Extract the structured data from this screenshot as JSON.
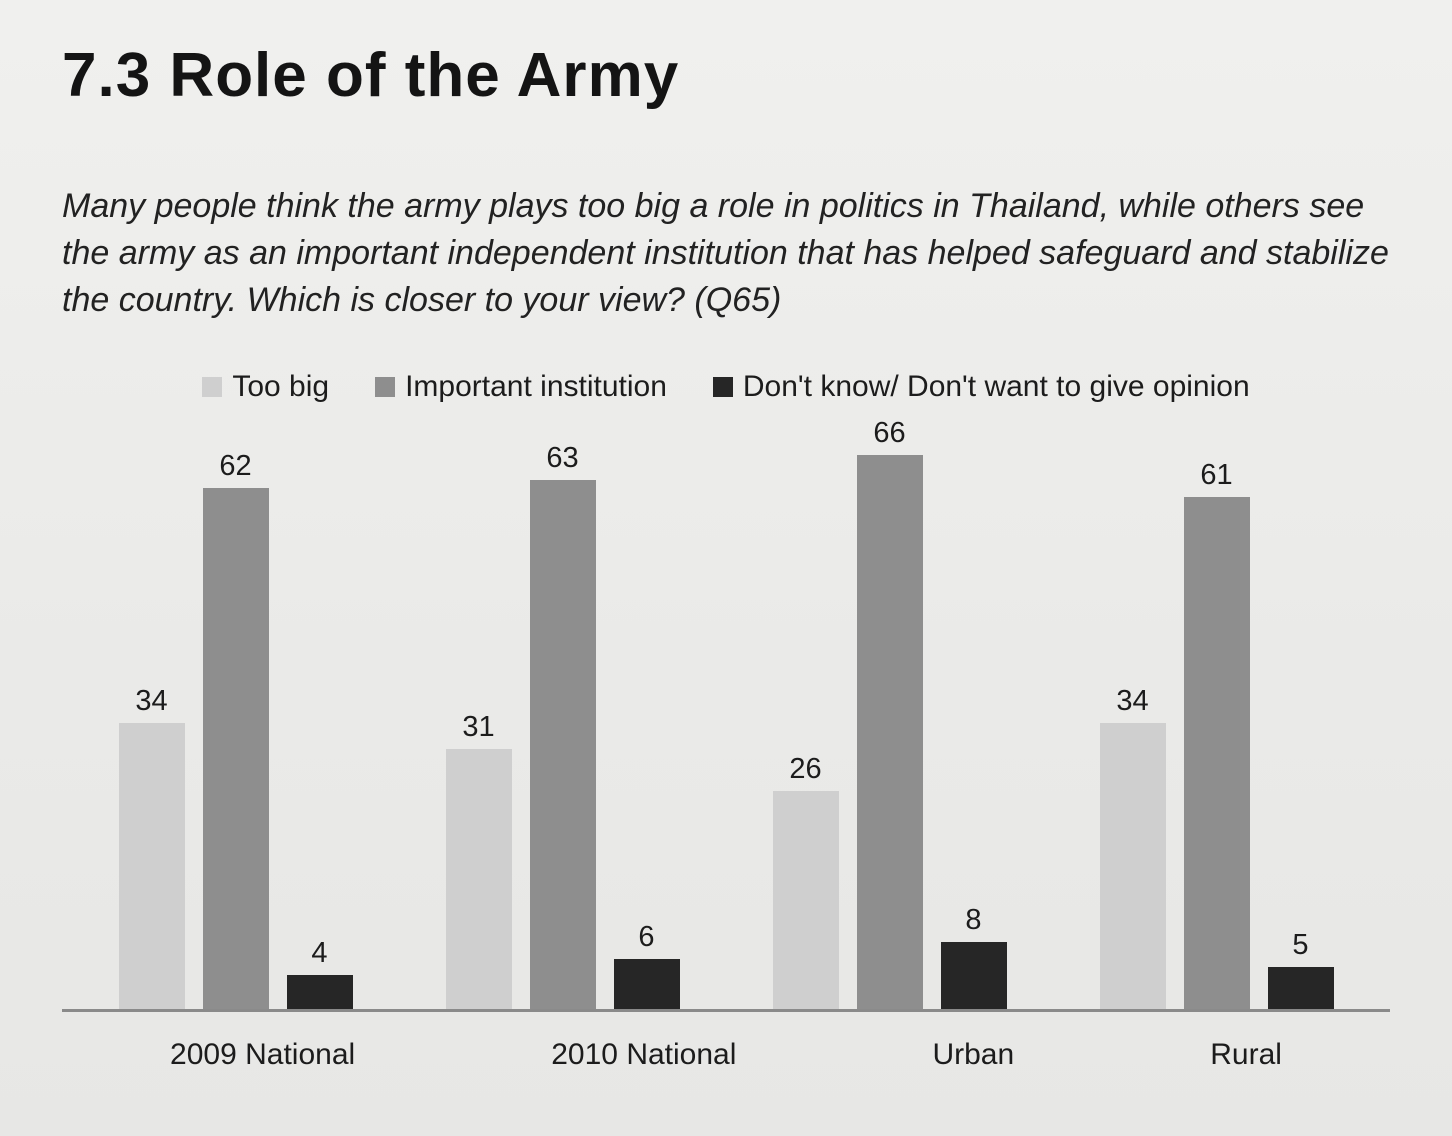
{
  "page": {
    "title": "7.3 Role of the Army",
    "subtitle": "Many people think the army plays too big a role in politics in Thailand, while others see the army as an important independent institution that has helped safeguard and stabilize the country. Which is closer to your view? (Q65)"
  },
  "chart_data": {
    "type": "bar",
    "title": "",
    "xlabel": "",
    "ylabel": "",
    "ylim": [
      0,
      70
    ],
    "grid": false,
    "legend_position": "top",
    "data_labels": true,
    "categories": [
      "2009 National",
      "2010 National",
      "Urban",
      "Rural"
    ],
    "series": [
      {
        "name": "Too big",
        "color": "#cfcfcf",
        "values": [
          34,
          31,
          26,
          34
        ]
      },
      {
        "name": "Important institution",
        "color": "#8e8e8e",
        "values": [
          62,
          63,
          66,
          61
        ]
      },
      {
        "name": "Don't know/ Don't want to give opinion",
        "color": "#262626",
        "values": [
          4,
          6,
          8,
          5
        ]
      }
    ]
  }
}
